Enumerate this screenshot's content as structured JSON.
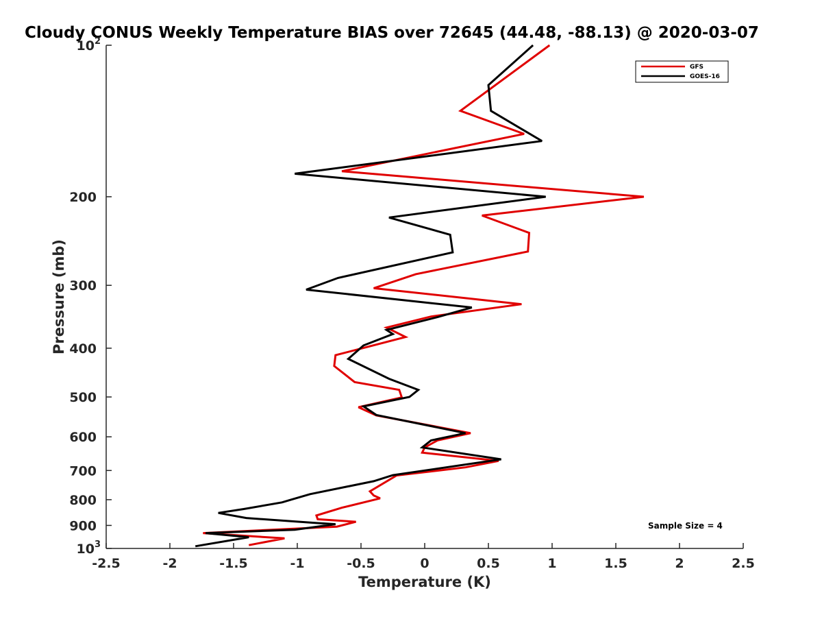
{
  "chart_data": {
    "type": "line",
    "title": "Cloudy CONUS Weekly Temperature BIAS over 72645 (44.48, -88.13) @ 2020-03-07",
    "xlabel": "Temperature (K)",
    "ylabel": "Pressure (mb)",
    "xlim": [
      -2.5,
      2.5
    ],
    "ylim": [
      100,
      1000
    ],
    "yscale": "log",
    "y_reversed": true,
    "grid": false,
    "legend_position": "top-right",
    "x_ticks": [
      "-2.5",
      "-2",
      "-1.5",
      "-1",
      "-0.5",
      "0",
      "0.5",
      "1",
      "1.5",
      "2",
      "2.5"
    ],
    "x_tick_values": [
      -2.5,
      -2,
      -1.5,
      -1,
      -0.5,
      0,
      0.5,
      1,
      1.5,
      2,
      2.5
    ],
    "y_ticks": [
      {
        "value": 100,
        "base": "10",
        "exp": "2"
      },
      {
        "value": 200,
        "label": "200"
      },
      {
        "value": 300,
        "label": "300"
      },
      {
        "value": 400,
        "label": "400"
      },
      {
        "value": 500,
        "label": "500"
      },
      {
        "value": 600,
        "label": "600"
      },
      {
        "value": 700,
        "label": "700"
      },
      {
        "value": 800,
        "label": "800"
      },
      {
        "value": 900,
        "label": "900"
      },
      {
        "value": 1000,
        "base": "10",
        "exp": "3"
      }
    ],
    "annotation": "Sample Size = 4",
    "series": [
      {
        "name": "GFS",
        "color": "#e00000",
        "points": [
          [
            0.98,
            100
          ],
          [
            0.28,
            135
          ],
          [
            0.78,
            150
          ],
          [
            -0.65,
            178
          ],
          [
            1.72,
            200
          ],
          [
            0.45,
            218
          ],
          [
            0.82,
            236
          ],
          [
            0.81,
            257
          ],
          [
            -0.07,
            285
          ],
          [
            -0.4,
            304
          ],
          [
            0.76,
            327
          ],
          [
            0.05,
            346
          ],
          [
            -0.3,
            364
          ],
          [
            -0.15,
            380
          ],
          [
            -0.7,
            413
          ],
          [
            -0.71,
            434
          ],
          [
            -0.55,
            467
          ],
          [
            -0.2,
            484
          ],
          [
            -0.18,
            501
          ],
          [
            -0.52,
            524
          ],
          [
            -0.38,
            544
          ],
          [
            0.36,
            590
          ],
          [
            0.1,
            610
          ],
          [
            0.0,
            630
          ],
          [
            -0.02,
            645
          ],
          [
            0.58,
            670
          ],
          [
            0.32,
            690
          ],
          [
            -0.22,
            716
          ],
          [
            -0.43,
            770
          ],
          [
            -0.4,
            785
          ],
          [
            -0.35,
            795
          ],
          [
            -0.65,
            830
          ],
          [
            -0.85,
            860
          ],
          [
            -0.84,
            875
          ],
          [
            -0.54,
            885
          ],
          [
            -0.69,
            905
          ],
          [
            -1.74,
            932
          ],
          [
            -1.1,
            955
          ],
          [
            -1.38,
            985
          ]
        ]
      },
      {
        "name": "GOES-16",
        "color": "#000000",
        "points": [
          [
            0.85,
            100
          ],
          [
            0.5,
            120
          ],
          [
            0.52,
            135
          ],
          [
            0.92,
            155
          ],
          [
            -1.02,
            180
          ],
          [
            0.95,
            200
          ],
          [
            -0.28,
            220
          ],
          [
            0.2,
            238
          ],
          [
            0.22,
            258
          ],
          [
            -0.68,
            290
          ],
          [
            -0.93,
            306
          ],
          [
            0.37,
            332
          ],
          [
            0.1,
            347
          ],
          [
            -0.3,
            368
          ],
          [
            -0.25,
            375
          ],
          [
            -0.48,
            395
          ],
          [
            -0.6,
            420
          ],
          [
            -0.28,
            460
          ],
          [
            -0.05,
            484
          ],
          [
            -0.12,
            500
          ],
          [
            -0.48,
            522
          ],
          [
            -0.38,
            543
          ],
          [
            0.32,
            590
          ],
          [
            0.05,
            610
          ],
          [
            -0.02,
            630
          ],
          [
            0.6,
            665
          ],
          [
            -0.25,
            715
          ],
          [
            -0.4,
            735
          ],
          [
            -0.9,
            780
          ],
          [
            -1.05,
            800
          ],
          [
            -1.12,
            810
          ],
          [
            -1.42,
            835
          ],
          [
            -1.62,
            850
          ],
          [
            -1.4,
            870
          ],
          [
            -0.85,
            890
          ],
          [
            -0.7,
            895
          ],
          [
            -1.02,
            918
          ],
          [
            -1.72,
            932
          ],
          [
            -1.38,
            950
          ],
          [
            -1.8,
            990
          ]
        ]
      }
    ]
  }
}
